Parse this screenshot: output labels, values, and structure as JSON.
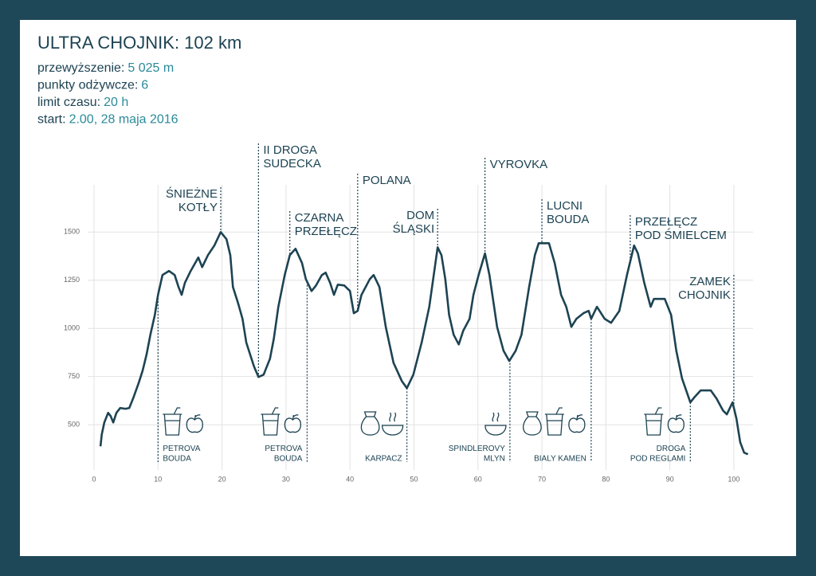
{
  "chart_data": {
    "type": "line",
    "title": "ULTRA CHOJNIK: 102 km",
    "info": [
      {
        "label": "przewyższenie:",
        "value": "5 025 m"
      },
      {
        "label": "punkty odżywcze:",
        "value": "6"
      },
      {
        "label": "limit czasu:",
        "value": "20 h"
      },
      {
        "label": "start:",
        "value": "2.00, 28 maja 2016"
      }
    ],
    "color": "#1d4353",
    "grid": true,
    "xlim": [
      -1,
      103
    ],
    "ylim": [
      265,
      1745
    ],
    "xticks": [
      0,
      10,
      20,
      30,
      40,
      50,
      60,
      70,
      80,
      90,
      100
    ],
    "yticks": [
      500,
      750,
      1000,
      1250,
      1500
    ],
    "x": [
      1,
      1.2,
      1.6,
      2.2,
      2.6,
      3,
      3.5,
      4.1,
      4.9,
      5.5,
      6.1,
      7,
      7.6,
      8.2,
      8.8,
      9.5,
      10,
      10.7,
      11.7,
      12.6,
      13.2,
      13.7,
      14.2,
      15.1,
      16.3,
      16.9,
      17.8,
      18.8,
      19.8,
      20.7,
      21.3,
      21.7,
      22.5,
      23.2,
      23.8,
      25,
      25.7,
      26.5,
      27.5,
      28.1,
      28.8,
      29.8,
      30.6,
      31.5,
      32.5,
      33.1,
      34,
      34.7,
      35.6,
      36.2,
      36.9,
      37.5,
      38.1,
      39.1,
      40,
      40.6,
      41.2,
      41.8,
      43.1,
      43.7,
      44.6,
      45.6,
      46.8,
      48.1,
      48.9,
      49.9,
      51.2,
      52.4,
      53.7,
      54.3,
      54.9,
      55.5,
      56.2,
      57,
      57.7,
      58.7,
      59.3,
      60.1,
      61.1,
      61.8,
      63,
      64,
      64.9,
      65.9,
      66.8,
      68,
      68.9,
      69.5,
      71.1,
      72,
      73,
      73.8,
      74.6,
      75.4,
      76.5,
      77.3,
      77.7,
      78.6,
      79.8,
      80.8,
      82.1,
      83.3,
      84.4,
      85,
      86,
      87,
      87.5,
      89.2,
      90.2,
      91,
      91.9,
      93.2,
      93.9,
      94.8,
      96.4,
      97.3,
      98.3,
      98.9,
      99.8,
      100.4,
      101,
      101.6,
      102.2
    ],
    "values": [
      388,
      450,
      512,
      562,
      545,
      512,
      562,
      587,
      583,
      587,
      636,
      719,
      781,
      864,
      967,
      1070,
      1174,
      1277,
      1298,
      1277,
      1215,
      1174,
      1236,
      1298,
      1368,
      1318,
      1380,
      1430,
      1500,
      1463,
      1380,
      1215,
      1132,
      1050,
      926,
      802,
      748,
      760,
      843,
      946,
      1112,
      1277,
      1380,
      1413,
      1339,
      1256,
      1194,
      1223,
      1277,
      1289,
      1236,
      1174,
      1227,
      1223,
      1194,
      1079,
      1091,
      1174,
      1256,
      1277,
      1215,
      1008,
      822,
      727,
      690,
      760,
      926,
      1112,
      1421,
      1380,
      1256,
      1070,
      967,
      917,
      988,
      1050,
      1174,
      1277,
      1389,
      1277,
      1008,
      884,
      831,
      884,
      967,
      1215,
      1380,
      1442,
      1442,
      1339,
      1174,
      1112,
      1008,
      1050,
      1079,
      1091,
      1050,
      1112,
      1050,
      1029,
      1091,
      1277,
      1430,
      1389,
      1236,
      1112,
      1153,
      1153,
      1070,
      884,
      740,
      616,
      645,
      678,
      678,
      636,
      574,
      554,
      616,
      533,
      409,
      355,
      347
    ],
    "peaks": [
      {
        "label": [
          "ŚNIEŻNE",
          "KOTŁY"
        ],
        "x": 19.8
      },
      {
        "label": [
          "II DROGA",
          "SUDECKA"
        ],
        "x": 25.7
      },
      {
        "label": [
          "CZARNA",
          "PRZEŁĘCZ"
        ],
        "x": 30.6
      },
      {
        "label": [
          "POLANA"
        ],
        "x": 41.2
      },
      {
        "label": [
          "DOM",
          "ŚLĄSKI"
        ],
        "x": 53.7
      },
      {
        "label": [
          "VYROVKA"
        ],
        "x": 61.1
      },
      {
        "label": [
          "LUCNI",
          "BOUDA"
        ],
        "x": 70
      },
      {
        "label": [
          "PRZEŁĘCZ",
          "POD ŚMIELCEM"
        ],
        "x": 83.8
      },
      {
        "label": [
          "ZAMEK",
          "CHOJNIK"
        ],
        "x": 100
      }
    ],
    "stations": [
      {
        "label": [
          "PETROVA",
          "BOUDA"
        ],
        "x": 10
      },
      {
        "label": [
          "PETROVA",
          "BOUDA"
        ],
        "x": 33.3
      },
      {
        "label": [
          "KARPACZ"
        ],
        "x": 48.9
      },
      {
        "label": [
          "SPINDLEROVY",
          "MLYN"
        ],
        "x": 65
      },
      {
        "label": [
          "BIALY KAMEN"
        ],
        "x": 77.7
      },
      {
        "label": [
          "DROGA",
          "POD REGLAMI"
        ],
        "x": 93.2
      }
    ]
  }
}
